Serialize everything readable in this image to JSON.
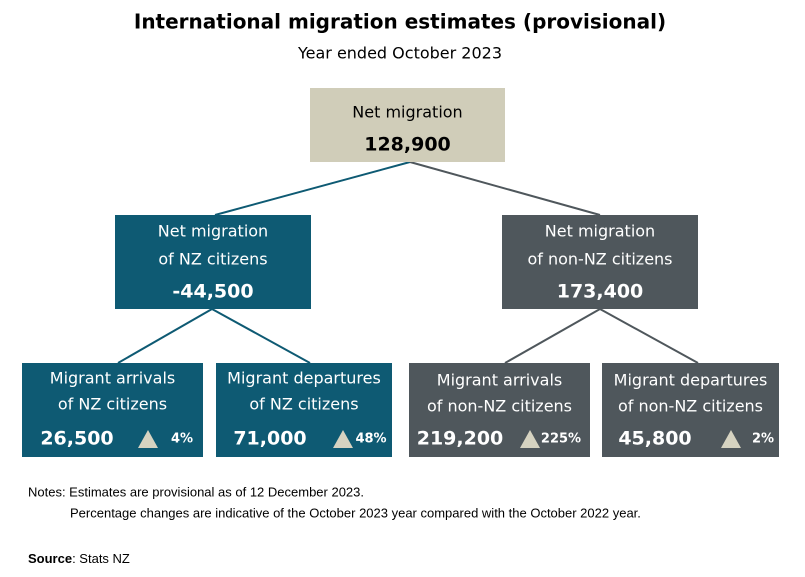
{
  "header": {
    "title": "International migration estimates (provisional)",
    "subtitle": "Year ended October 2023"
  },
  "nodes": [
    {
      "label": [
        "Net migration"
      ],
      "value": "128,900"
    },
    {
      "label": [
        "Net migration",
        "of NZ citizens"
      ],
      "value": "-44,500"
    },
    {
      "label": [
        "Net migration",
        "of non-NZ citizens"
      ],
      "value": "173,400"
    },
    {
      "label": [
        "Migrant arrivals",
        "of NZ citizens"
      ],
      "value": "26,500",
      "change": "4%"
    },
    {
      "label": [
        "Migrant departures",
        "of NZ citizens"
      ],
      "value": "71,000",
      "change": "48%"
    },
    {
      "label": [
        "Migrant arrivals",
        "of non-NZ citizens"
      ],
      "value": "219,200",
      "change": "225%"
    },
    {
      "label": [
        "Migrant departures",
        "of non-NZ citizens"
      ],
      "value": "45,800",
      "change": "2%"
    }
  ],
  "notes": [
    "Notes: Estimates are provisional as of 12 December 2023.",
    "Percentage changes are indicative of the October 2023 year compared with the October 2022 year."
  ],
  "source": {
    "label": "Source",
    "text": ": Stats NZ"
  }
}
